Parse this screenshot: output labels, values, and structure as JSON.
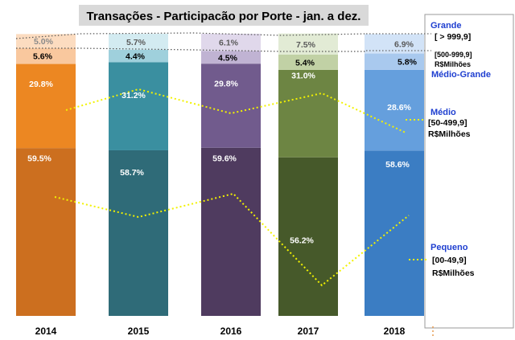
{
  "chart_data": {
    "type": "bar",
    "stacked": true,
    "title": "Transações - Participacão por Porte - jan. a dez.",
    "categories": [
      "2014",
      "2015",
      "2016",
      "2017",
      "2018"
    ],
    "ylim": [
      0,
      100
    ],
    "series": [
      {
        "name": "Pequeno",
        "values": [
          59.5,
          58.7,
          59.6,
          56.2,
          58.6
        ]
      },
      {
        "name": "Médio",
        "values": [
          29.8,
          31.2,
          29.8,
          31.0,
          28.6
        ]
      },
      {
        "name": "Médio-Grande",
        "values": [
          5.6,
          4.4,
          4.5,
          5.4,
          5.8
        ]
      },
      {
        "name": "Grande",
        "values": [
          5.0,
          5.7,
          6.1,
          7.5,
          6.9
        ]
      }
    ],
    "data_labels": [
      [
        "59.5%",
        "29.8%",
        "5.6%",
        "5.0%"
      ],
      [
        "58.7%",
        "31.2%",
        "4.4%",
        "5.7%"
      ],
      [
        "59.6%",
        "29.8%",
        "4.5%",
        "6.1%"
      ],
      [
        "56.2%",
        "31.0%",
        "5.4%",
        "7.5%"
      ],
      [
        "58.6%",
        "28.6%",
        "5.8%",
        "6.9%"
      ]
    ],
    "colors": [
      [
        "#cc6f1f",
        "#ec8722",
        "#f9c89e",
        "#fcdcc0"
      ],
      [
        "#2f6b78",
        "#3a8fa0",
        "#9fd0dc",
        "#d3ebf1"
      ],
      [
        "#4f3b5f",
        "#715b8d",
        "#c0b3d3",
        "#e0d8eb"
      ],
      [
        "#46592a",
        "#6d8543",
        "#c1d1a5",
        "#e2ebd5"
      ],
      [
        "#3b7dc3",
        "#659fdd",
        "#a9c9ee",
        "#d2e3f7"
      ]
    ],
    "legend": {
      "position": "right",
      "entries": [
        {
          "name": "Grande",
          "range": "[ > 999,9]",
          "color": "#1f3fd0"
        },
        {
          "name": "Médio-Grande",
          "range": "[500-999,9]",
          "unit": "R$Milhões",
          "color": "#1f3fd0"
        },
        {
          "name": "Médio",
          "range": "[50-499,9]",
          "unit": "R$Milhões",
          "color": "#1f3fd0"
        },
        {
          "name": "Pequeno",
          "range": "[00-49,9]",
          "unit": "R$Milhões",
          "color": "#1f3fd0"
        }
      ]
    },
    "grid": false
  }
}
